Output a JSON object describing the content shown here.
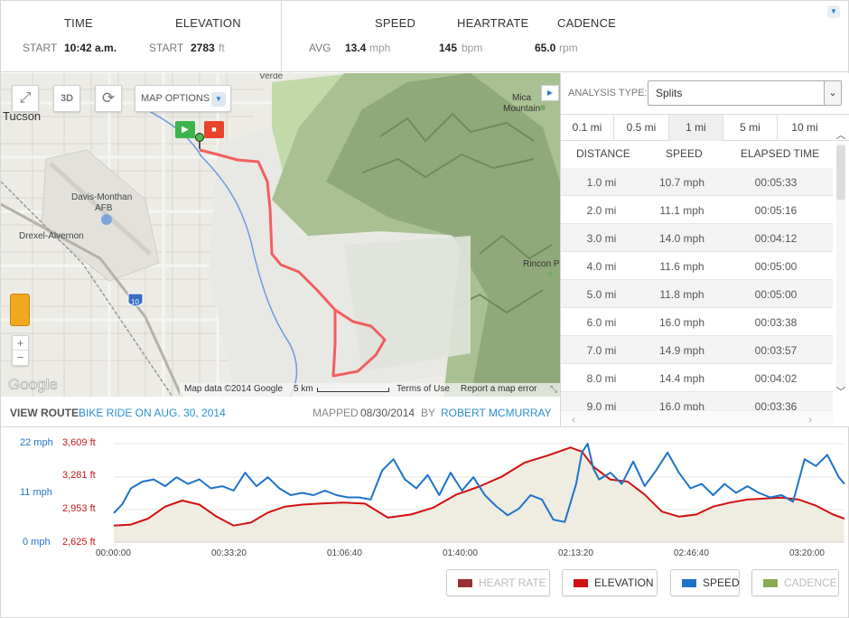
{
  "stats": {
    "time_header": "TIME",
    "elevation_header": "ELEVATION",
    "speed_header": "SPEED",
    "heartrate_header": "HEARTRATE",
    "cadence_header": "CADENCE",
    "start_label": "START",
    "start_time": "10:42 a.m.",
    "elev_start_label": "START",
    "elev_start_value": "2783",
    "elev_unit": "ft",
    "avg_label": "AVG",
    "avg_speed": "13.4",
    "speed_unit": "mph",
    "heartrate": "145",
    "heartrate_unit": "bpm",
    "cadence": "65.0",
    "cadence_unit": "rpm"
  },
  "map": {
    "options_label": "MAP OPTIONS",
    "ctrl_3d": "3D",
    "zoom_in": "+",
    "zoom_out": "−",
    "places": {
      "tucson": "Tucson",
      "verde": "Verde",
      "davis": "Davis-Monthan",
      "afb": "AFB",
      "drexel": "Drexel-Alvernon",
      "mica": "Mica",
      "mountain": "Mountain",
      "rincon": "Rincon P",
      "interstate": "10"
    },
    "google": "Google",
    "map_data": "Map data ©2014 Google",
    "scale": "5 km",
    "terms": "Terms of Use",
    "report": "Report a map error"
  },
  "route": {
    "view_label": "VIEW ROUTE",
    "name": "BIKE RIDE ON AUG. 30, 2014",
    "mapped_label": "MAPPED",
    "mapped_date": "08/30/2014",
    "by_label": "BY",
    "author": "ROBERT MCMURRAY"
  },
  "analysis": {
    "type_label": "ANALYSIS TYPE:",
    "type_value": "Splits",
    "tabs": [
      "0.1 mi",
      "0.5 mi",
      "1 mi",
      "5 mi",
      "10 mi"
    ],
    "active_tab": 2,
    "columns": [
      "DISTANCE",
      "SPEED",
      "ELAPSED TIME"
    ],
    "rows": [
      [
        "1.0 mi",
        "10.7 mph",
        "00:05:33"
      ],
      [
        "2.0 mi",
        "11.1 mph",
        "00:05:16"
      ],
      [
        "3.0 mi",
        "14.0 mph",
        "00:04:12"
      ],
      [
        "4.0 mi",
        "11.6 mph",
        "00:05:00"
      ],
      [
        "5.0 mi",
        "11.8 mph",
        "00:05:00"
      ],
      [
        "6.0 mi",
        "16.0 mph",
        "00:03:38"
      ],
      [
        "7.0 mi",
        "14.9 mph",
        "00:03:57"
      ],
      [
        "8.0 mi",
        "14.4 mph",
        "00:04:02"
      ],
      [
        "9.0 mi",
        "16.0 mph",
        "00:03:36"
      ]
    ]
  },
  "graph": {
    "speed_ticks": [
      "22 mph",
      "11 mph",
      "0 mph"
    ],
    "elev_ticks": [
      "3,609 ft",
      "3,281 ft",
      "2,953 ft",
      "2,625 ft"
    ],
    "x_ticks": [
      "00:00:00",
      "00:33:20",
      "01:06:40",
      "01:40:00",
      "02:13:20",
      "02:46:40",
      "03:20:00"
    ],
    "legend": {
      "heart_rate": "HEART RATE",
      "elevation": "ELEVATION",
      "speed": "SPEED",
      "cadence": "CADENCE"
    },
    "colors": {
      "speed": "#1e73c8",
      "elevation": "#d01010",
      "heart_rate": "#9a2a2a",
      "cadence": "#8aaa55",
      "fill": "#efece2"
    }
  },
  "chart_data": {
    "type": "line",
    "x_unit": "elapsed time (s)",
    "xlim": [
      0,
      12800
    ],
    "series": [
      {
        "name": "SPEED",
        "axis": "speed",
        "ylim": [
          0,
          22
        ],
        "x": [
          0,
          150,
          300,
          500,
          700,
          900,
          1100,
          1300,
          1500,
          1700,
          1900,
          2100,
          2300,
          2500,
          2700,
          2900,
          3100,
          3300,
          3500,
          3700,
          3900,
          4100,
          4300,
          4500,
          4700,
          4900,
          5100,
          5300,
          5500,
          5700,
          5900,
          6100,
          6300,
          6500,
          6700,
          6900,
          7100,
          7300,
          7500,
          7700,
          7900,
          8100,
          8200,
          8300,
          8400,
          8500,
          8700,
          8900,
          9100,
          9300,
          9500,
          9700,
          9900,
          10100,
          10300,
          10500,
          10700,
          10900,
          11100,
          11300,
          11500,
          11700,
          11900,
          12100,
          12300,
          12500,
          12700,
          12800
        ],
        "values": [
          6.5,
          8.5,
          12.0,
          13.5,
          14.0,
          12.5,
          14.5,
          13.0,
          14.0,
          12.0,
          12.5,
          11.5,
          15.5,
          12.5,
          14.5,
          12.0,
          10.5,
          11.0,
          10.5,
          11.5,
          10.5,
          10.0,
          10.0,
          9.5,
          16.0,
          18.5,
          14.0,
          12.0,
          15.0,
          10.5,
          15.5,
          11.5,
          14.5,
          10.5,
          8.0,
          6.0,
          7.5,
          10.5,
          9.5,
          5.0,
          4.5,
          13.0,
          20.0,
          22.0,
          16.5,
          14.0,
          15.5,
          13.0,
          18.0,
          12.5,
          16.0,
          20.0,
          15.5,
          12.0,
          13.0,
          10.5,
          13.0,
          11.0,
          12.5,
          11.0,
          10.0,
          10.5,
          9.0,
          18.5,
          17.0,
          19.5,
          14.5,
          13.0
        ]
      },
      {
        "name": "ELEVATION",
        "axis": "elevation",
        "ylim": [
          2625,
          3609
        ],
        "x": [
          0,
          300,
          600,
          900,
          1200,
          1500,
          1800,
          2100,
          2400,
          2700,
          3000,
          3300,
          3600,
          4000,
          4400,
          4800,
          5200,
          5600,
          6000,
          6400,
          6800,
          7200,
          7600,
          8000,
          8200,
          8400,
          8700,
          9000,
          9300,
          9600,
          9900,
          10200,
          10500,
          10800,
          11100,
          11400,
          11700,
          12000,
          12300,
          12600,
          12800
        ],
        "values": [
          2790,
          2800,
          2860,
          2980,
          3040,
          3000,
          2880,
          2790,
          2820,
          2920,
          2980,
          3000,
          3010,
          3020,
          3010,
          2870,
          2900,
          2970,
          3100,
          3180,
          3280,
          3420,
          3490,
          3570,
          3530,
          3380,
          3250,
          3230,
          3100,
          2930,
          2880,
          2900,
          2980,
          3020,
          3050,
          3060,
          3070,
          3050,
          2990,
          2900,
          2860
        ]
      }
    ]
  }
}
